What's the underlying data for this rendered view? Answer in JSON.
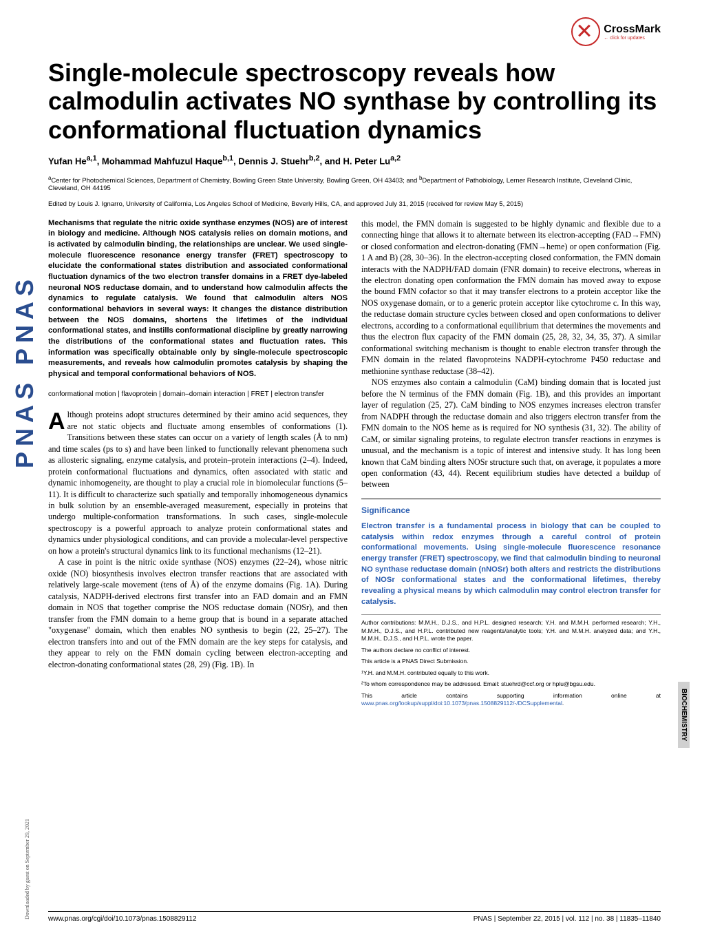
{
  "crossmark": {
    "label": "CrossMark",
    "sub": "← click for updates"
  },
  "pnas_side": "PNAS  PNAS",
  "download_note": "Downloaded by guest on September 29, 2021",
  "side_label": "BIOCHEMISTRY",
  "title": "Single-molecule spectroscopy reveals how calmodulin activates NO synthase by controlling its conformational fluctuation dynamics",
  "authors_html": "Yufan He<sup>a,1</sup>, Mohammad Mahfuzul Haque<sup>b,1</sup>, Dennis J. Stuehr<sup>b,2</sup>, and H. Peter Lu<sup>a,2</sup>",
  "affiliations_html": "<sup>a</sup>Center for Photochemical Sciences, Department of Chemistry, Bowling Green State University, Bowling Green, OH 43403; and <sup>b</sup>Department of Pathobiology, Lerner Research Institute, Cleveland Clinic, Cleveland, OH 44195",
  "edited": "Edited by Louis J. Ignarro, University of California, Los Angeles School of Medicine, Beverly Hills, CA, and approved July 31, 2015 (received for review May 5, 2015)",
  "abstract": "Mechanisms that regulate the nitric oxide synthase enzymes (NOS) are of interest in biology and medicine. Although NOS catalysis relies on domain motions, and is activated by calmodulin binding, the relationships are unclear. We used single-molecule fluorescence resonance energy transfer (FRET) spectroscopy to elucidate the conformational states distribution and associated conformational fluctuation dynamics of the two electron transfer domains in a FRET dye-labeled neuronal NOS reductase domain, and to understand how calmodulin affects the dynamics to regulate catalysis. We found that calmodulin alters NOS conformational behaviors in several ways: It changes the distance distribution between the NOS domains, shortens the lifetimes of the individual conformational states, and instills conformational discipline by greatly narrowing the distributions of the conformational states and fluctuation rates. This information was specifically obtainable only by single-molecule spectroscopic measurements, and reveals how calmodulin promotes catalysis by shaping the physical and temporal conformational behaviors of NOS.",
  "keywords": "conformational motion | flavoprotein | domain–domain interaction | FRET | electron transfer",
  "body_left_p1": "Although proteins adopt structures determined by their amino acid sequences, they are not static objects and fluctuate among ensembles of conformations (1). Transitions between these states can occur on a variety of length scales (Å to nm) and time scales (ps to s) and have been linked to functionally relevant phenomena such as allosteric signaling, enzyme catalysis, and protein–protein interactions (2–4). Indeed, protein conformational fluctuations and dynamics, often associated with static and dynamic inhomogeneity, are thought to play a crucial role in biomolecular functions (5–11). It is difficult to characterize such spatially and temporally inhomogeneous dynamics in bulk solution by an ensemble-averaged measurement, especially in proteins that undergo multiple-conformation transformations. In such cases, single-molecule spectroscopy is a powerful approach to analyze protein conformational states and dynamics under physiological conditions, and can provide a molecular-level perspective on how a protein's structural dynamics link to its functional mechanisms (12–21).",
  "body_left_p2": "A case in point is the nitric oxide synthase (NOS) enzymes (22–24), whose nitric oxide (NO) biosynthesis involves electron transfer reactions that are associated with relatively large-scale movement (tens of Å) of the enzyme domains (Fig. 1A). During catalysis, NADPH-derived electrons first transfer into an FAD domain and an FMN domain in NOS that together comprise the NOS reductase domain (NOSr), and then transfer from the FMN domain to a heme group that is bound in a separate attached \"oxygenase\" domain, which then enables NO synthesis to begin (22, 25–27). The electron transfers into and out of the FMN domain are the key steps for catalysis, and they appear to rely on the FMN domain cycling between electron-accepting and electron-donating conformational states (28, 29) (Fig. 1B). In",
  "body_right_p1": "this model, the FMN domain is suggested to be highly dynamic and flexible due to a connecting hinge that allows it to alternate between its electron-accepting (FAD→FMN) or closed conformation and electron-donating (FMN→heme) or open conformation (Fig. 1 A and B) (28, 30–36). In the electron-accepting closed conformation, the FMN domain interacts with the NADPH/FAD domain (FNR domain) to receive electrons, whereas in the electron donating open conformation the FMN domain has moved away to expose the bound FMN cofactor so that it may transfer electrons to a protein acceptor like the NOS oxygenase domain, or to a generic protein acceptor like cytochrome c. In this way, the reductase domain structure cycles between closed and open conformations to deliver electrons, according to a conformational equilibrium that determines the movements and thus the electron flux capacity of the FMN domain (25, 28, 32, 34, 35, 37). A similar conformational switching mechanism is thought to enable electron transfer through the FMN domain in the related flavoproteins NADPH-cytochrome P450 reductase and methionine synthase reductase (38–42).",
  "body_right_p2": "NOS enzymes also contain a calmodulin (CaM) binding domain that is located just before the N terminus of the FMN domain (Fig. 1B), and this provides an important layer of regulation (25, 27). CaM binding to NOS enzymes increases electron transfer from NADPH through the reductase domain and also triggers electron transfer from the FMN domain to the NOS heme as is required for NO synthesis (31, 32). The ability of CaM, or similar signaling proteins, to regulate electron transfer reactions in enzymes is unusual, and the mechanism is a topic of interest and intensive study. It has long been known that CaM binding alters NOSr structure such that, on average, it populates a more open conformation (43, 44). Recent equilibrium studies have detected a buildup of between",
  "significance": {
    "title": "Significance",
    "text": "Electron transfer is a fundamental process in biology that can be coupled to catalysis within redox enzymes through a careful control of protein conformational movements. Using single-molecule fluorescence resonance energy transfer (FRET) spectroscopy, we find that calmodulin binding to neuronal NO synthase reductase domain (nNOSr) both alters and restricts the distributions of NOSr conformational states and the conformational lifetimes, thereby revealing a physical means by which calmodulin may control electron transfer for catalysis."
  },
  "contributions": {
    "p1": "Author contributions: M.M.H., D.J.S., and H.P.L. designed research; Y.H. and M.M.H. performed research; Y.H., M.M.H., D.J.S., and H.P.L. contributed new reagents/analytic tools; Y.H. and M.M.H. analyzed data; and Y.H., M.M.H., D.J.S., and H.P.L. wrote the paper.",
    "p2": "The authors declare no conflict of interest.",
    "p3": "This article is a PNAS Direct Submission.",
    "p4": "¹Y.H. and M.M.H. contributed equally to this work.",
    "p5": "²To whom correspondence may be addressed. Email: stuehrd@ccf.org or hplu@bgsu.edu.",
    "p6_prefix": "This article contains supporting information online at ",
    "p6_link": "www.pnas.org/lookup/suppl/doi:10.1073/pnas.1508829112/-/DCSupplemental",
    "p6_suffix": "."
  },
  "footer": {
    "left": "www.pnas.org/cgi/doi/10.1073/pnas.1508829112",
    "right": "PNAS | September 22, 2015 | vol. 112 | no. 38 | 11835–11840"
  }
}
